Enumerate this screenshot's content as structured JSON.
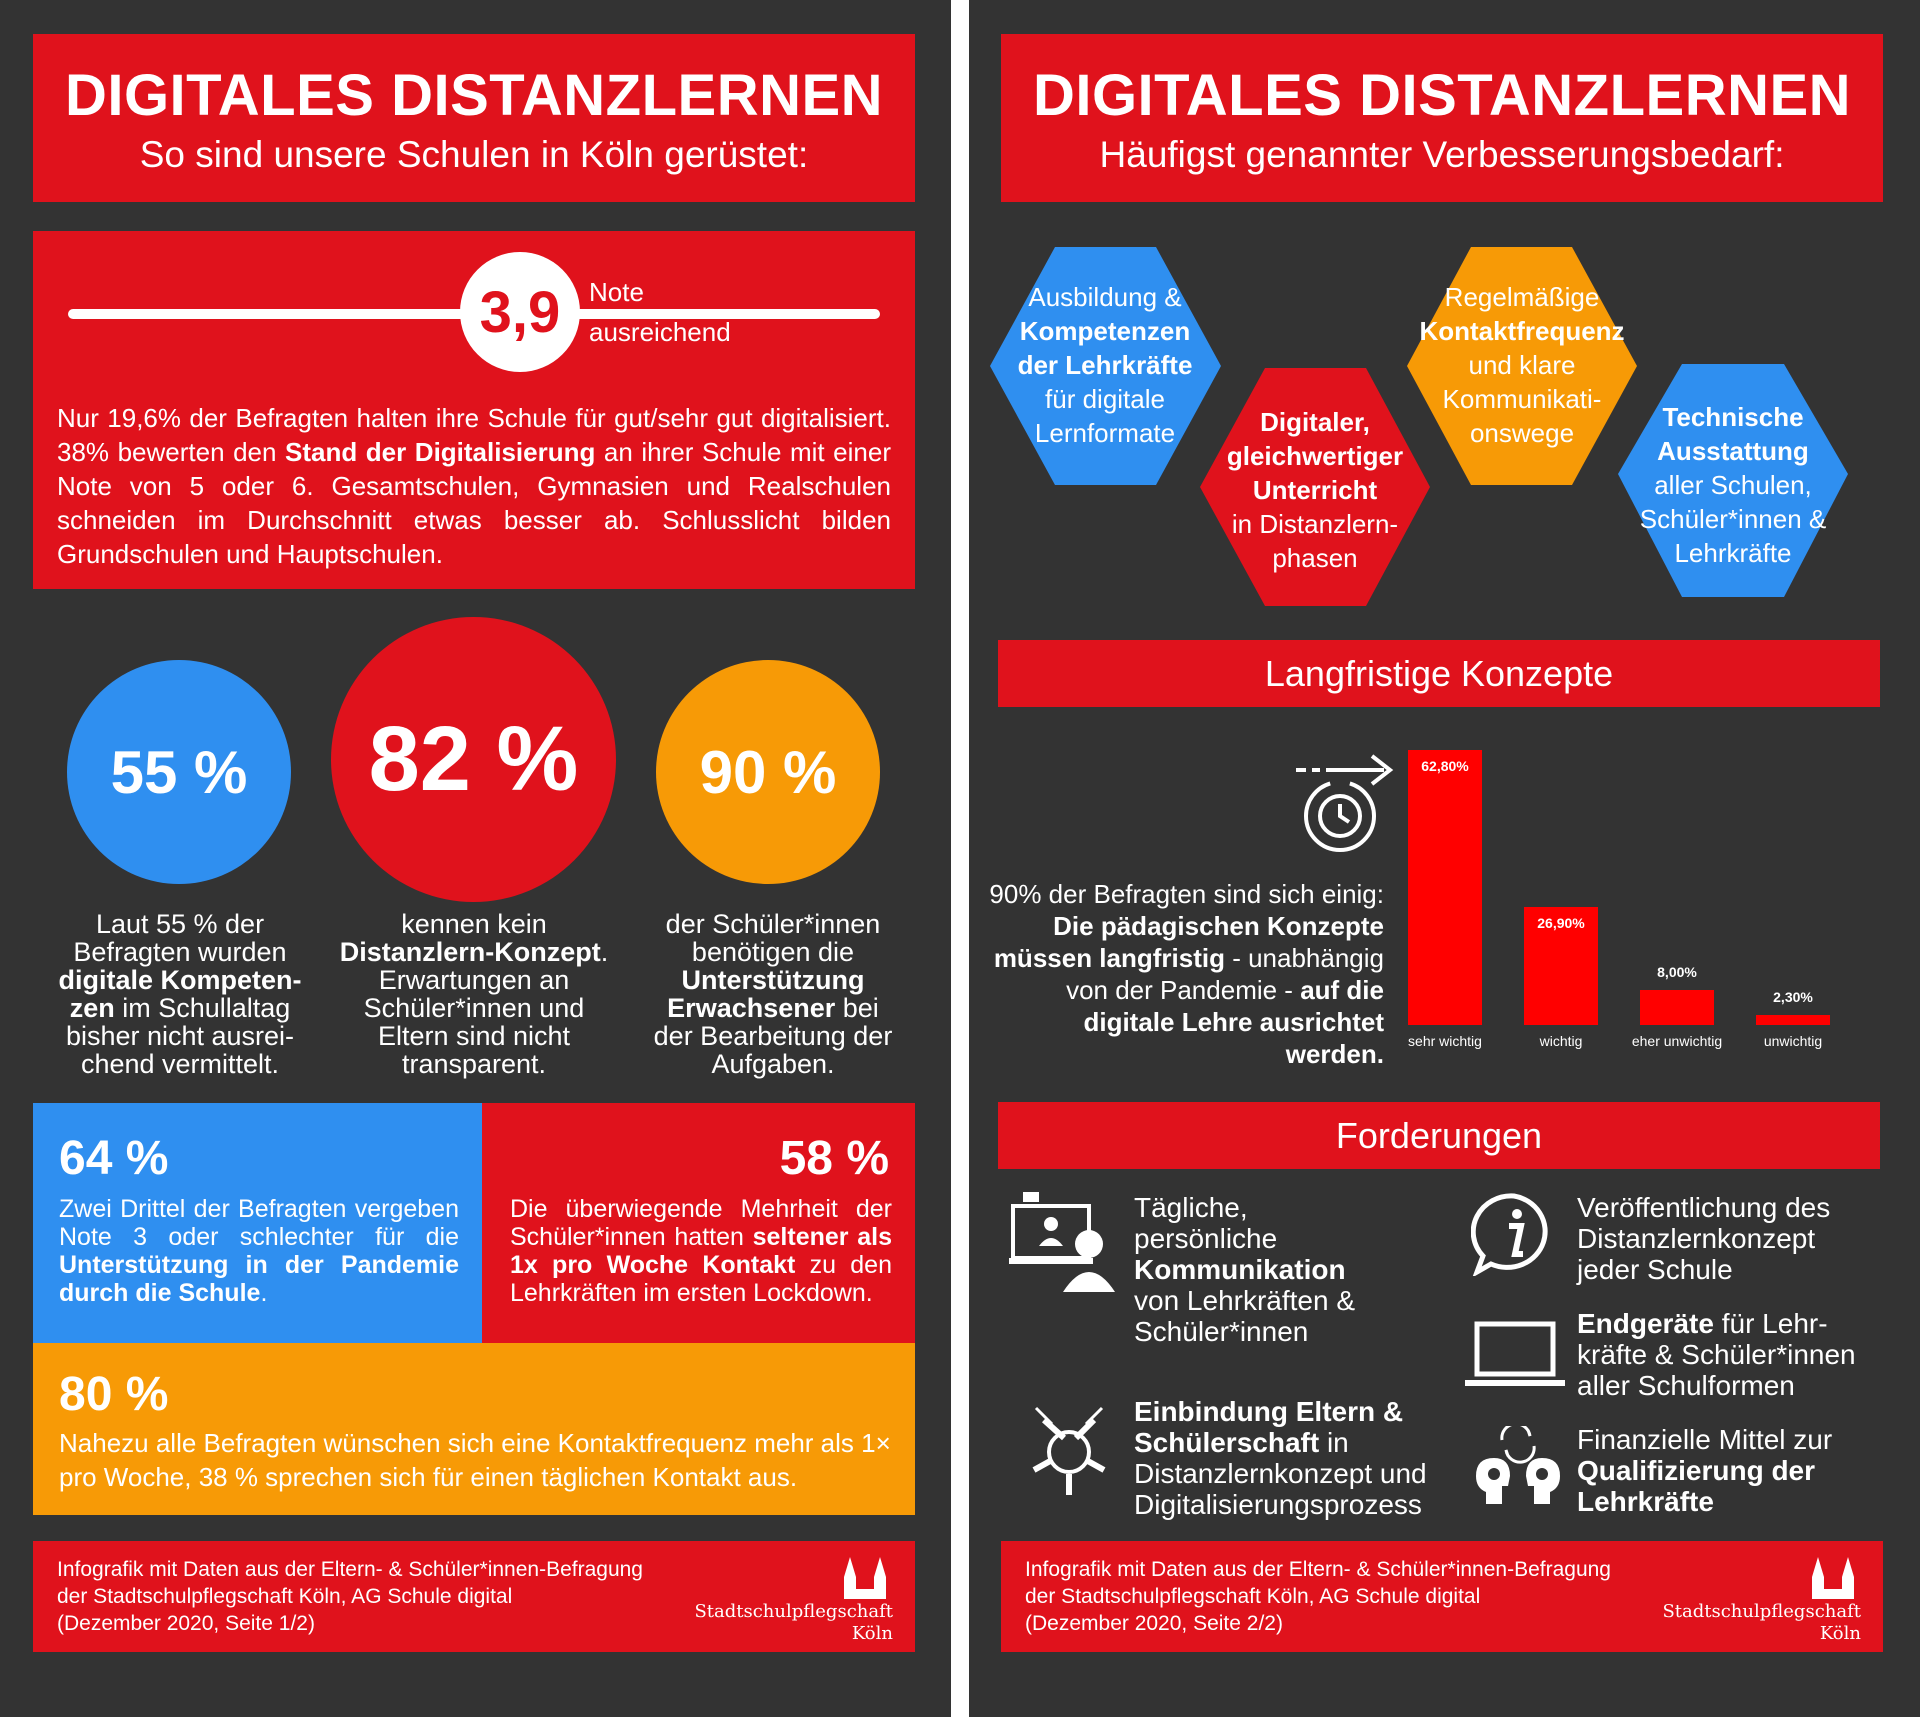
{
  "colors": {
    "red": "#e0121c",
    "blue": "#2f8ff0",
    "orange": "#f79a06",
    "background": "#333333"
  },
  "left": {
    "title": "DIGITALES DISTANZLERNEN",
    "subtitle": "So sind unsere Schulen in Köln gerüstet:",
    "grade": {
      "value": "3,9",
      "label1": "Note",
      "label2": "ausreichend"
    },
    "intro": {
      "p1": "Nur 19,6% der Befragten halten ihre Schule für gut/sehr gut digitalisiert. 38% bewerten den ",
      "bold1": "Stand der Digitalisierung",
      "p2": " an ihrer Schule mit einer Note von 5 oder 6. Gesamtschulen, Gymnasien und Realschulen schneiden im Durchschnitt etwas besser ab. Schlusslicht bilden Grundschulen und Hauptschulen."
    },
    "stats": [
      {
        "value": "55 %",
        "pre": "Laut 55 % der Befragten wurden ",
        "bold": "digitale Kompeten-zen",
        "post": " im Schullaltag bisher nicht ausrei-chend vermittelt."
      },
      {
        "value": "82 %",
        "pre": "kennen kein ",
        "bold": "Distanzlern-Konzept",
        "post": ". Erwartungen an Schüler*innen und Eltern sind nicht transparent."
      },
      {
        "value": "90 %",
        "pre": "der Schüler*innen benötigen die ",
        "bold": "Unterstützung Erwachsener",
        "post": " bei der Bearbeitung der Aufgaben."
      }
    ],
    "box64": {
      "value": "64 %",
      "pre": "Zwei Drittel der Befragten vergeben Note 3 oder schlechter für die ",
      "bold": "Unterstützung in der Pandemie durch die Schule",
      "post": "."
    },
    "box58": {
      "value": "58 %",
      "pre": "Die überwiegende Mehrheit der Schüler*innen hatten ",
      "bold": "seltener als 1x pro Woche Kontakt",
      "post": " zu den Lehrkräften im ersten Lockdown."
    },
    "box80": {
      "value": "80 %",
      "text": "Nahezu alle Befragten wünschen sich eine Kontaktfrequenz mehr als 1× pro Woche, 38 % sprechen sich für einen täglichen Kontakt aus."
    },
    "footer": {
      "line1": "Infografik mit Daten aus der Eltern- & Schüler*innen-Befragung",
      "line2": "der Stadtschulpflegschaft Köln, AG Schule digital",
      "line3": "(Dezember 2020, Seite 1/2)",
      "org1": "Stadtschulpflegschaft",
      "org2": "Köln"
    }
  },
  "right": {
    "title": "DIGITALES DISTANZLERNEN",
    "subtitle": "Häufigst genannter Verbesserungsbedarf:",
    "hexes": [
      {
        "a": "Ausbildung &",
        "b": "Kompetenzen der Lehrkräfte",
        "c": "für digitale Lernformate"
      },
      {
        "a": "",
        "b": "Digitaler, gleichwertiger Unterricht",
        "c": "in Distanzlern-phasen"
      },
      {
        "a": "Regelmäßige",
        "b": "Kontaktfrequenz",
        "c": "und klare Kommunikati-onswege"
      },
      {
        "a": "",
        "b": "Technische Ausstattung",
        "c": "aller Schulen, Schüler*innen & Lehrkräfte"
      }
    ],
    "section1": "Langfristige Konzepte",
    "konzept": {
      "pre": "90% der Befragten sind sich einig: ",
      "bold1": "Die pädagischen Konzepte müssen langfristig",
      "mid": " - unabhängig von der Pandemie - ",
      "bold2": "auf die digitale Lehre ausrichtet werden."
    },
    "chart_data": {
      "type": "bar",
      "categories": [
        "sehr wichtig",
        "wichtig",
        "eher unwichtig",
        "unwichtig"
      ],
      "values": [
        62.8,
        26.9,
        8.0,
        2.3
      ],
      "labels": [
        "62,80%",
        "26,90%",
        "8,00%",
        "2,30%"
      ],
      "ylim": [
        0,
        62.8
      ]
    },
    "section2": "Forderungen",
    "demands": {
      "d1": {
        "a": "Tägliche, persönliche ",
        "b": "Kommunikation",
        "c": " von Lehrkräften & Schüler*innen"
      },
      "d2": {
        "a": "",
        "b": "Einbindung Eltern & Schülerschaft",
        "c": " in Distanzlernkonzept und Digitalisierungsprozess"
      },
      "d3": {
        "a": "Veröffentlichung des Distanzlernkonzept jeder Schule",
        "b": "",
        "c": ""
      },
      "d4": {
        "a": "",
        "b": "Endgeräte",
        "c": " für Lehr-kräfte & Schüler*innen aller Schulformen"
      },
      "d5": {
        "a": "Finanzielle Mittel zur ",
        "b": "Qualifizierung der Lehrkräfte",
        "c": ""
      }
    },
    "footer": {
      "line1": "Infografik mit Daten aus der Eltern- & Schüler*innen-Befragung",
      "line2": "der Stadtschulpflegschaft Köln, AG Schule digital",
      "line3": "(Dezember 2020, Seite 2/2)",
      "org1": "Stadtschulpflegschaft",
      "org2": "Köln"
    }
  }
}
